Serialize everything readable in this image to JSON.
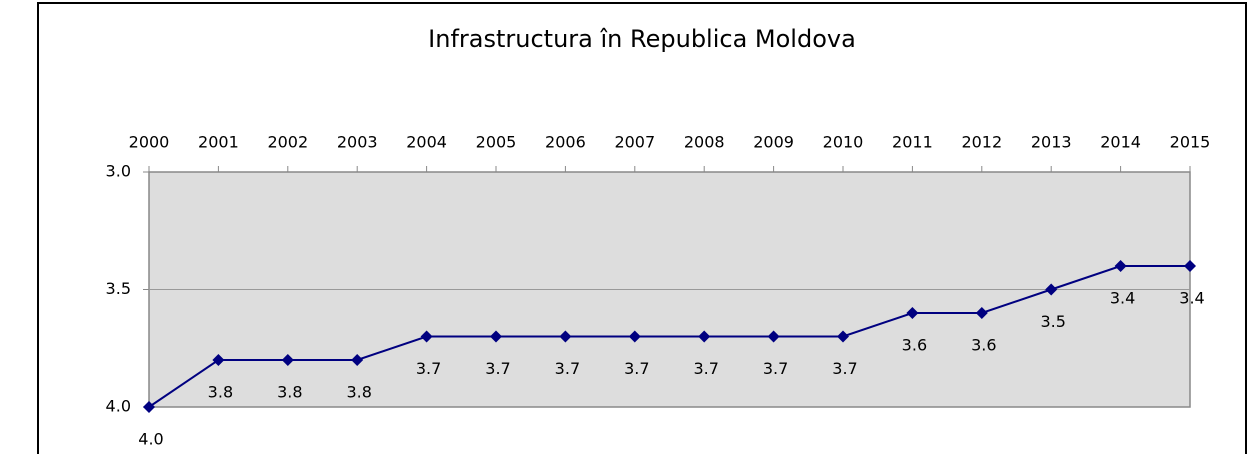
{
  "chart_data": {
    "type": "line",
    "title": "Infrastructura în Republica Moldova",
    "categories": [
      "2000",
      "2001",
      "2002",
      "2003",
      "2004",
      "2005",
      "2006",
      "2007",
      "2008",
      "2009",
      "2010",
      "2011",
      "2012",
      "2013",
      "2014",
      "2015"
    ],
    "series": [
      {
        "name": "Infrastructura",
        "color": "#000080",
        "values": [
          4.0,
          3.8,
          3.8,
          3.8,
          3.7,
          3.7,
          3.7,
          3.7,
          3.7,
          3.7,
          3.7,
          3.6,
          3.6,
          3.5,
          3.4,
          3.4
        ],
        "value_labels": [
          "4.0",
          "3.8",
          "3.8",
          "3.8",
          "3.7",
          "3.7",
          "3.7",
          "3.7",
          "3.7",
          "3.7",
          "3.7",
          "3.6",
          "3.6",
          "3.5",
          "3.4",
          "3.4"
        ]
      }
    ],
    "ylim": [
      3,
      4
    ],
    "y_inverted": true,
    "yticks": [
      {
        "value": 3,
        "label": "3.0"
      },
      3.5,
      {
        "value": 4,
        "label": "4.0"
      }
    ],
    "grid": true,
    "x_axis_position": "top"
  }
}
